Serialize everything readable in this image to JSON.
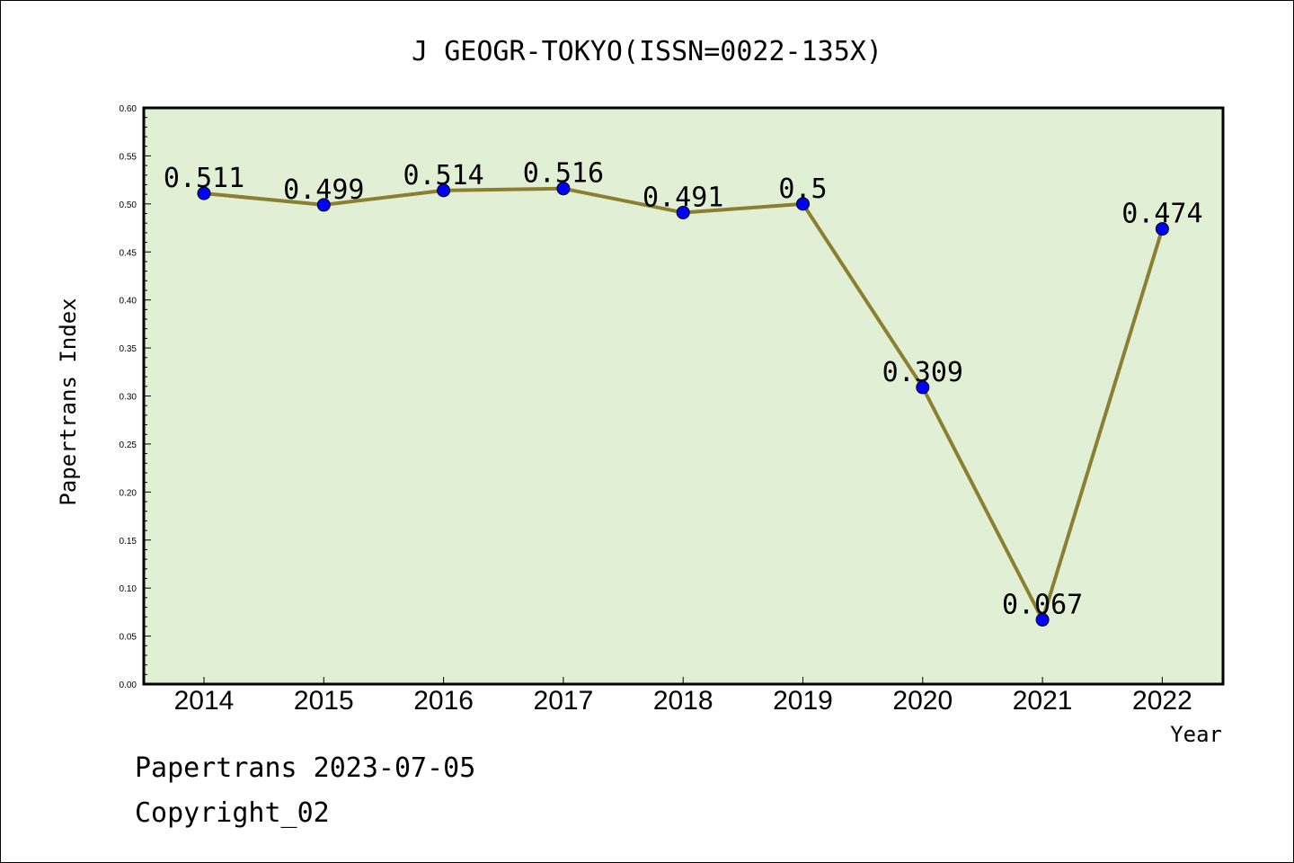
{
  "chart_data": {
    "type": "line",
    "title": "J GEOGR-TOKYO(ISSN=0022-135X)",
    "xlabel": "Year",
    "ylabel": "Papertrans Index",
    "categories": [
      "2014",
      "2015",
      "2016",
      "2017",
      "2018",
      "2019",
      "2020",
      "2021",
      "2022"
    ],
    "series": [
      {
        "values": [
          0.511,
          0.499,
          0.514,
          0.516,
          0.491,
          0.5,
          0.309,
          0.067,
          0.474
        ],
        "data_labels": [
          "0.511",
          "0.499",
          "0.514",
          "0.516",
          "0.491",
          "0.5",
          "0.309",
          "0.067",
          "0.474"
        ]
      }
    ],
    "ylim": [
      0,
      0.6
    ],
    "yticks": [
      "0.00",
      "0.05",
      "0.10",
      "0.15",
      "0.20",
      "0.25",
      "0.30",
      "0.35",
      "0.40",
      "0.45",
      "0.50",
      "0.55",
      "0.60"
    ],
    "grid": false,
    "colors": {
      "plot_background": "#e1efd5",
      "line": "#8b8032",
      "marker": "#0000ff"
    }
  },
  "footer": {
    "date_line": "Papertrans 2023-07-05",
    "copyright": "Copyright_02"
  }
}
